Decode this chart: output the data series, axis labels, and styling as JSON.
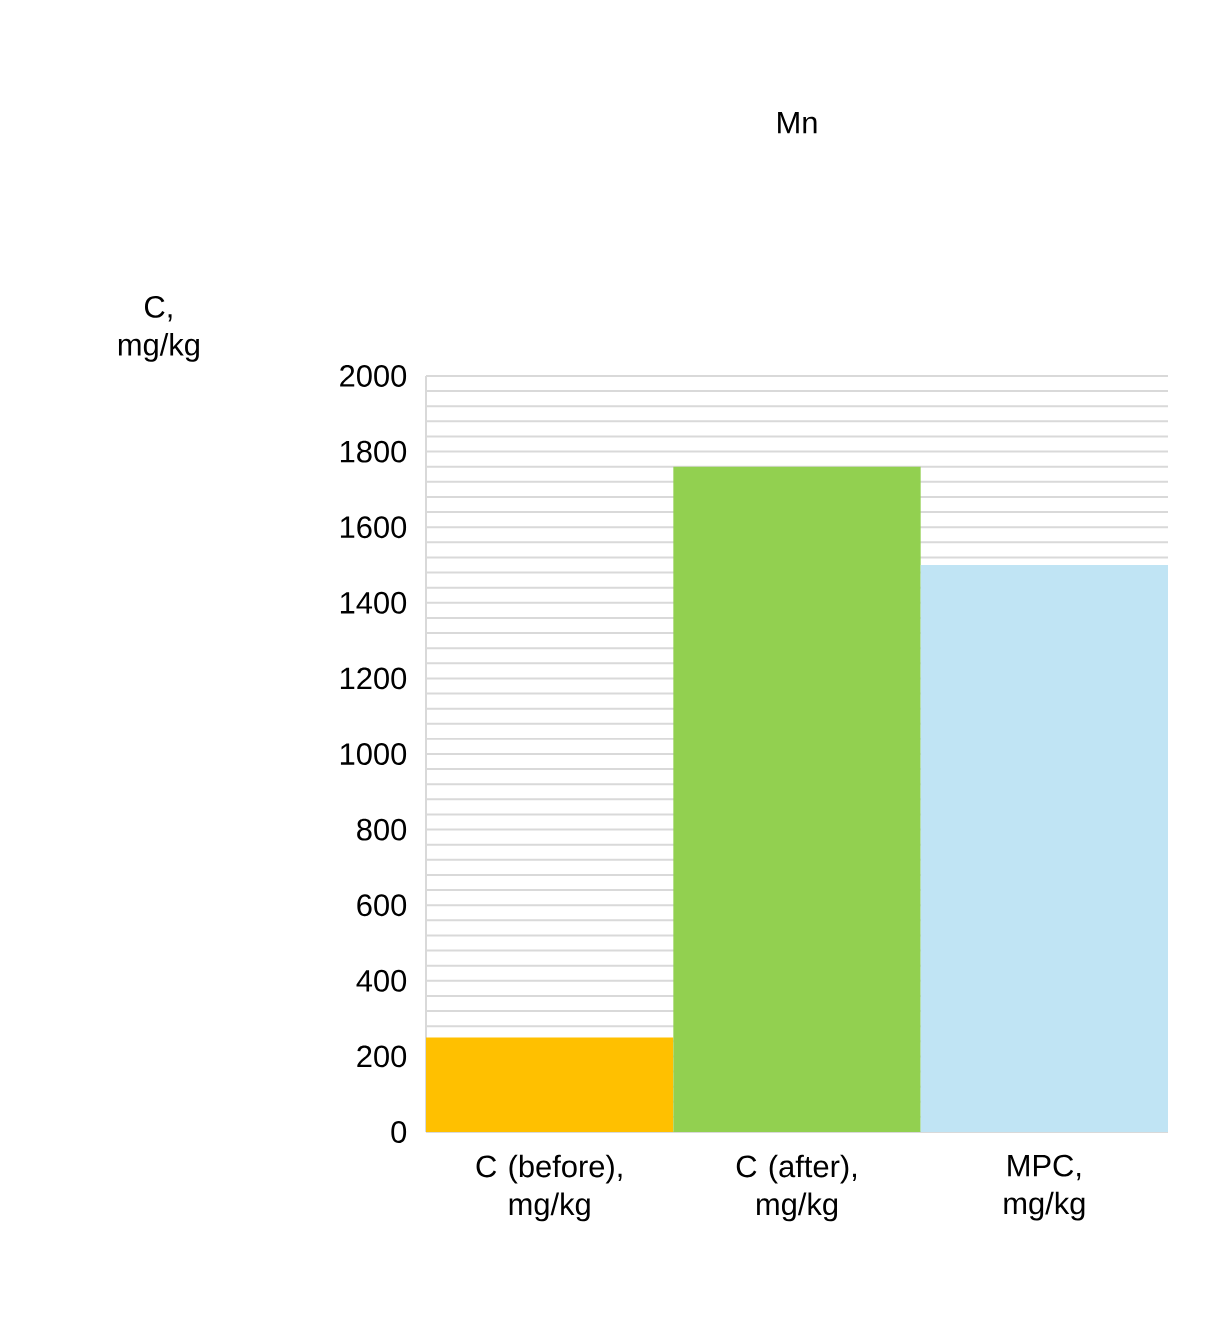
{
  "chart_data": {
    "type": "bar",
    "title": "Mn",
    "ylabel": "C, mg/kg",
    "categories": [
      "C (before), mg/kg",
      "C (after), mg/kg",
      "MPC, mg/kg"
    ],
    "values": [
      250,
      1760,
      1500
    ],
    "colors": [
      "#ffc000",
      "#92d050",
      "#c0e4f4"
    ],
    "ylim": [
      0,
      2000
    ],
    "yticks": [
      0,
      200,
      400,
      600,
      800,
      1000,
      1200,
      1400,
      1600,
      1800,
      2000
    ],
    "grid": "y"
  }
}
